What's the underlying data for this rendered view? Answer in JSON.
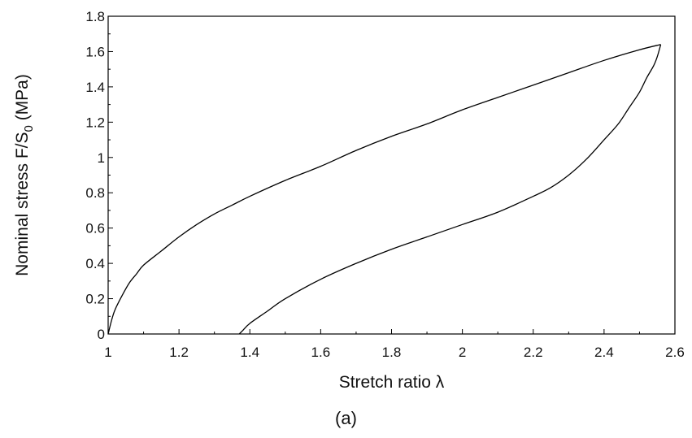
{
  "chart_data": {
    "type": "line",
    "xlabel": "Stretch ratio λ",
    "ylabel": "Nominal stress F/S₀ (MPa)",
    "xlim": [
      1,
      2.6
    ],
    "ylim": [
      0,
      1.8
    ],
    "x_ticks": [
      "1",
      "1.2",
      "1.4",
      "1.6",
      "1.8",
      "2",
      "2.2",
      "2.4",
      "2.6"
    ],
    "y_ticks": [
      "0",
      "0.2",
      "0.4",
      "0.6",
      "0.8",
      "1",
      "1.2",
      "1.4",
      "1.6",
      "1.8"
    ],
    "grid": false,
    "series": [
      {
        "segment": "loading",
        "x": [
          1.0,
          1.01,
          1.02,
          1.04,
          1.06,
          1.08,
          1.1,
          1.15,
          1.2,
          1.25,
          1.3,
          1.35,
          1.4,
          1.5,
          1.6,
          1.7,
          1.8,
          1.9,
          2.0,
          2.1,
          2.2,
          2.3,
          2.4,
          2.5,
          2.56
        ],
        "y": [
          0.0,
          0.08,
          0.14,
          0.22,
          0.29,
          0.34,
          0.39,
          0.47,
          0.55,
          0.62,
          0.68,
          0.73,
          0.78,
          0.87,
          0.95,
          1.04,
          1.12,
          1.19,
          1.27,
          1.34,
          1.41,
          1.48,
          1.55,
          1.61,
          1.64
        ]
      },
      {
        "segment": "unloading",
        "x": [
          2.56,
          2.55,
          2.54,
          2.52,
          2.5,
          2.47,
          2.44,
          2.4,
          2.35,
          2.3,
          2.25,
          2.2,
          2.1,
          2.0,
          1.9,
          1.8,
          1.7,
          1.6,
          1.5,
          1.45,
          1.4,
          1.38,
          1.37
        ],
        "y": [
          1.64,
          1.57,
          1.52,
          1.45,
          1.37,
          1.28,
          1.19,
          1.1,
          0.99,
          0.9,
          0.83,
          0.78,
          0.69,
          0.62,
          0.55,
          0.48,
          0.4,
          0.31,
          0.2,
          0.13,
          0.06,
          0.02,
          0.0
        ]
      }
    ]
  },
  "caption": "(a)"
}
